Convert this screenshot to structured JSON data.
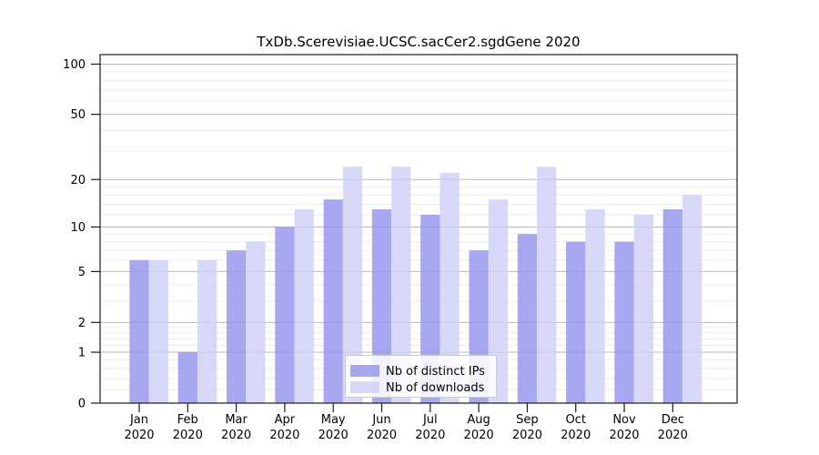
{
  "chart_data": {
    "type": "bar",
    "title": "TxDb.Scerevisiae.UCSC.sacCer2.sgdGene 2020",
    "categories": [
      "Jan",
      "Feb",
      "Mar",
      "Apr",
      "May",
      "Jun",
      "Jul",
      "Aug",
      "Sep",
      "Oct",
      "Nov",
      "Dec"
    ],
    "x_tick_year": "2020",
    "series": [
      {
        "name": "Nb of distinct IPs",
        "color": "#9595ed",
        "values": [
          6,
          1,
          7,
          10,
          15,
          13,
          12,
          7,
          9,
          8,
          8,
          13
        ]
      },
      {
        "name": "Nb of downloads",
        "color": "#cfcff6",
        "values": [
          6,
          6,
          8,
          13,
          24,
          24,
          22,
          15,
          24,
          13,
          12,
          16
        ]
      }
    ],
    "y_scale": "log1p",
    "ylim": [
      0,
      114
    ],
    "y_ticks": [
      0,
      1,
      2,
      5,
      10,
      20,
      50,
      100
    ],
    "y_minor_gridlines": [
      0.2,
      0.4,
      0.6,
      0.8,
      1.2,
      1.4,
      1.6,
      1.8,
      3,
      4,
      6,
      7,
      8,
      9,
      12,
      14,
      16,
      18,
      30,
      40,
      60,
      70,
      80,
      90
    ],
    "grid": true,
    "legend_position": "inside-bottom-center",
    "colors": {
      "bar_distinct_ips": "#9595ed",
      "bar_downloads": "#cfcff6",
      "bar_opacity": 0.82,
      "grid_major": "#b8b8b8",
      "grid_minor": "#ececec",
      "axis": "#1a1a1a",
      "legend_border": "#cccccc",
      "background": "#ffffff"
    }
  }
}
